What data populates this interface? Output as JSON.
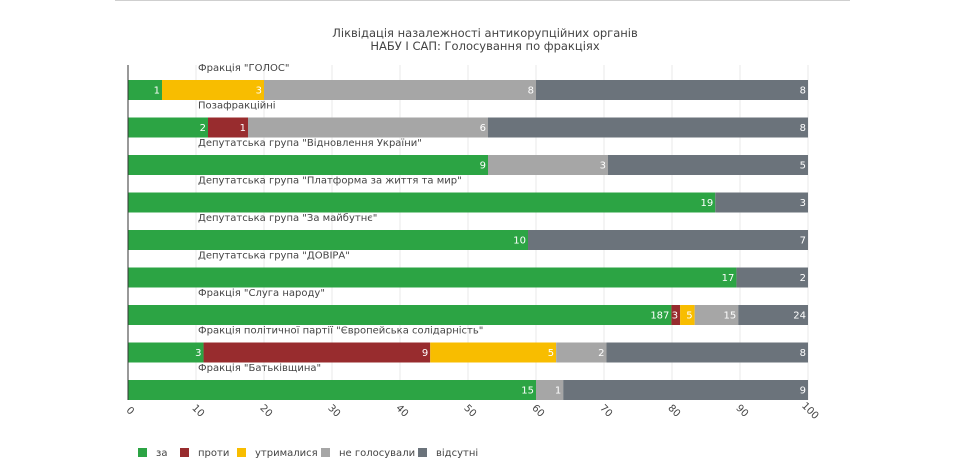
{
  "chart_data": {
    "type": "bar",
    "orientation": "horizontal",
    "stacked": "percent",
    "title": "Ліквідація назалежності антикорупційних органів",
    "subtitle": "НАБУ І САП: Голосування по фракціях",
    "xlim": [
      0,
      100
    ],
    "xticks": [
      0,
      10,
      20,
      30,
      40,
      50,
      60,
      70,
      80,
      90,
      100
    ],
    "grid": true,
    "legend_position": "bottom-left",
    "categories": [
      "Фракція \"ГОЛОС\"",
      "Позафракційні",
      "Депутатська група \"Відновлення України\"",
      "Депутатська група \"Платформа за життя та мир\"",
      "Депутатська група \"За майбутнє\"",
      "Депутатська група \"ДОВІРА\"",
      "Фракція \"Слуга народу\"",
      "Фракція політичної партії \"Європейська солідарність\"",
      "Фракція \"Батьківщина\""
    ],
    "series": [
      {
        "name": "за",
        "color": "#2ca444",
        "values": [
          1,
          2,
          9,
          19,
          10,
          17,
          187,
          3,
          15
        ]
      },
      {
        "name": "проти",
        "color": "#982c2e",
        "values": [
          0,
          1,
          0,
          0,
          0,
          0,
          3,
          9,
          0
        ]
      },
      {
        "name": "утрималися",
        "color": "#f8bd00",
        "values": [
          3,
          0,
          0,
          0,
          0,
          0,
          5,
          5,
          0
        ]
      },
      {
        "name": "не голосували",
        "color": "#a6a6a6",
        "values": [
          8,
          6,
          3,
          0,
          0,
          0,
          15,
          2,
          1
        ]
      },
      {
        "name": "відсутні",
        "color": "#6b737b",
        "values": [
          8,
          8,
          5,
          3,
          7,
          2,
          24,
          8,
          9
        ]
      }
    ]
  }
}
